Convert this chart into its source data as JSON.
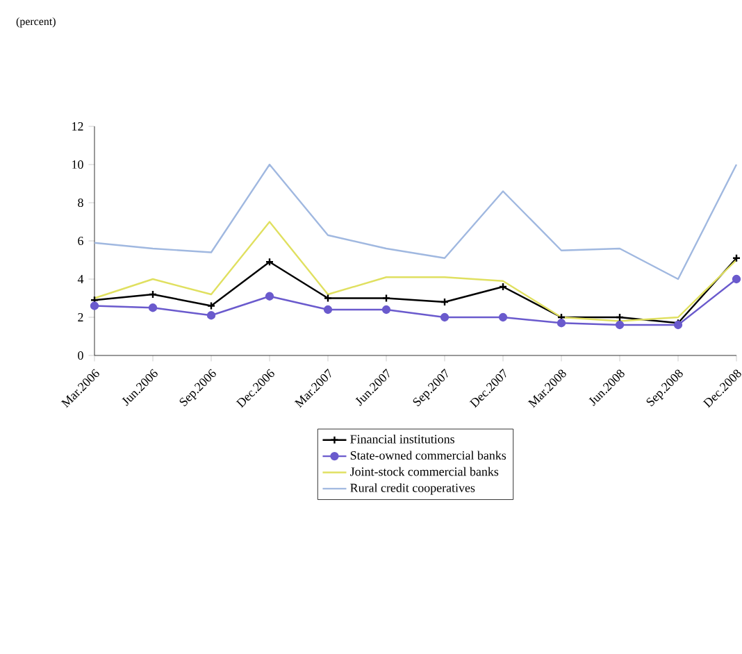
{
  "chart_data": {
    "type": "line",
    "title": "(percent)",
    "categories": [
      "Mar.2006",
      "Jun.2006",
      "Sep.2006",
      "Dec.2006",
      "Mar.2007",
      "Jun.2007",
      "Sep.2007",
      "Dec.2007",
      "Mar.2008",
      "Jun.2008",
      "Sep.2008",
      "Dec.2008"
    ],
    "ylim": [
      0,
      12
    ],
    "yticks": [
      0,
      2,
      4,
      6,
      8,
      10,
      12
    ],
    "legend": "bottom",
    "series": [
      {
        "name": "Financial institutions",
        "color": "#000000",
        "marker": "cross",
        "values": [
          2.9,
          3.2,
          2.6,
          4.9,
          3.0,
          3.0,
          2.8,
          3.6,
          2.0,
          2.0,
          1.7,
          5.1
        ]
      },
      {
        "name": "State-owned commercial banks",
        "color": "#6a5acd",
        "marker": "circle",
        "values": [
          2.6,
          2.5,
          2.1,
          3.1,
          2.4,
          2.4,
          2.0,
          2.0,
          1.7,
          1.6,
          1.6,
          4.0
        ]
      },
      {
        "name": "Joint-stock commercial banks",
        "color": "#e0e060",
        "marker": "none",
        "values": [
          3.0,
          4.0,
          3.2,
          7.0,
          3.2,
          4.1,
          4.1,
          3.9,
          2.0,
          1.8,
          2.0,
          5.0
        ]
      },
      {
        "name": "Rural credit cooperatives",
        "color": "#a0b8e0",
        "marker": "none",
        "values": [
          5.9,
          5.6,
          5.4,
          10.0,
          6.3,
          5.6,
          5.1,
          8.6,
          5.5,
          5.6,
          4.0,
          10.0
        ]
      }
    ]
  }
}
